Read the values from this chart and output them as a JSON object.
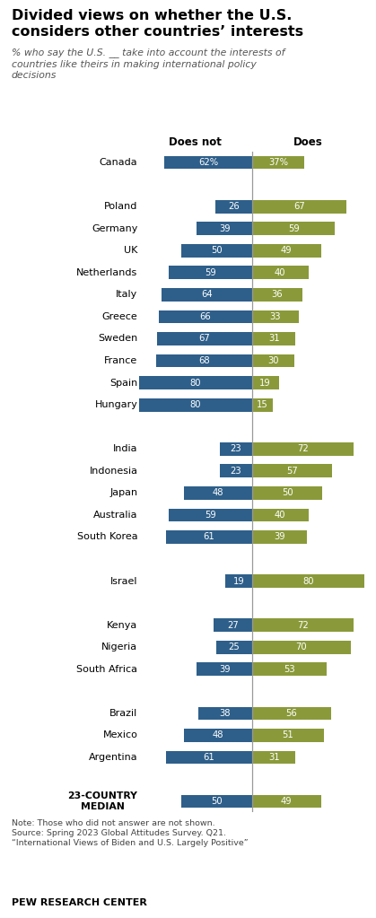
{
  "title": "Divided views on whether the U.S.\nconsiders other countries’ interests",
  "subtitle": "% who say the U.S. __ take into account the interests of\ncountries like theirs in making international policy\ndecisions",
  "col_header_does_not": "Does not",
  "col_header_does": "Does",
  "countries": [
    "Canada",
    null,
    "Poland",
    "Germany",
    "UK",
    "Netherlands",
    "Italy",
    "Greece",
    "Sweden",
    "France",
    "Spain",
    "Hungary",
    null,
    "India",
    "Indonesia",
    "Japan",
    "Australia",
    "South Korea",
    null,
    "Israel",
    null,
    "Kenya",
    "Nigeria",
    "South Africa",
    null,
    "Brazil",
    "Mexico",
    "Argentina",
    null,
    "23-COUNTRY\nMEDIAN"
  ],
  "does_not": [
    62,
    null,
    26,
    39,
    50,
    59,
    64,
    66,
    67,
    68,
    80,
    80,
    null,
    23,
    23,
    48,
    59,
    61,
    null,
    19,
    null,
    27,
    25,
    39,
    null,
    38,
    48,
    61,
    null,
    50
  ],
  "does": [
    37,
    null,
    67,
    59,
    49,
    40,
    36,
    33,
    31,
    30,
    19,
    15,
    null,
    72,
    57,
    50,
    40,
    39,
    null,
    80,
    null,
    72,
    70,
    53,
    null,
    56,
    51,
    31,
    null,
    49
  ],
  "blue_color": "#2e5f8a",
  "green_color": "#8a9a3a",
  "note": "Note: Those who did not answer are not shown.\nSource: Spring 2023 Global Attitudes Survey. Q21.\n“International Views of Biden and U.S. Largely Positive”",
  "footer": "PEW RESEARCH CENTER",
  "bar_height": 0.6,
  "scale": 80
}
